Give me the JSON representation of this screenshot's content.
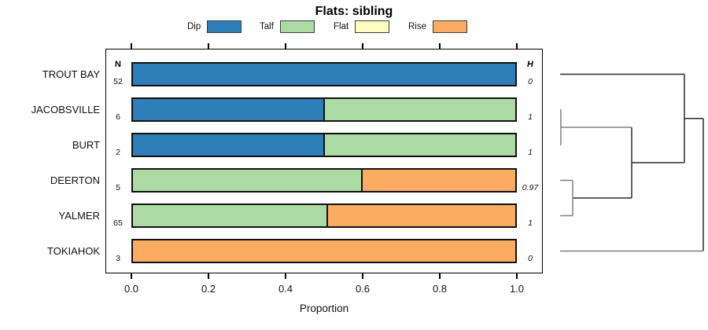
{
  "title": "Flats: sibling",
  "legend": {
    "items": [
      {
        "label": "Dip",
        "color": "#2E7FB9"
      },
      {
        "label": "Talf",
        "color": "#ABDBA2"
      },
      {
        "label": "Flat",
        "color": "#FDFDC2"
      },
      {
        "label": "Rise",
        "color": "#FBAC62"
      }
    ]
  },
  "table": {
    "n_header": "N",
    "h_header": "H"
  },
  "axis": {
    "label": "Proportion",
    "tick_labels": [
      "0.0",
      "0.2",
      "0.4",
      "0.6",
      "0.8",
      "1.0"
    ]
  },
  "chart_data": {
    "type": "bar",
    "stacked": true,
    "orientation": "horizontal",
    "title": "Flats: sibling",
    "xlabel": "Proportion",
    "xlim": [
      0,
      1
    ],
    "xticks": [
      0.0,
      0.2,
      0.4,
      0.6,
      0.8,
      1.0
    ],
    "grid": false,
    "legend_position": "top",
    "categories": [
      "TROUT BAY",
      "JACOBSVILLE",
      "BURT",
      "DEERTON",
      "YALMER",
      "TOKIAHOK"
    ],
    "n_values": [
      "52",
      "6",
      "2",
      "5",
      "65",
      "3"
    ],
    "h_values": [
      "0",
      "1",
      "1",
      "0.97",
      "1",
      "0"
    ],
    "series": [
      {
        "name": "Dip",
        "color": "#2E7FB9",
        "values": [
          1.0,
          0.5,
          0.5,
          0.0,
          0.0,
          0.0
        ]
      },
      {
        "name": "Talf",
        "color": "#ABDBA2",
        "values": [
          0.0,
          0.5,
          0.5,
          0.6,
          0.508,
          0.0
        ]
      },
      {
        "name": "Flat",
        "color": "#FDFDC2",
        "values": [
          0.0,
          0.0,
          0.0,
          0.0,
          0.0,
          0.0
        ]
      },
      {
        "name": "Rise",
        "color": "#FBAC62",
        "values": [
          0.0,
          0.0,
          0.0,
          0.4,
          0.492,
          1.0
        ]
      }
    ]
  },
  "dendrogram": {
    "leaves": [
      "TROUT BAY",
      "JACOBSVILLE",
      "BURT",
      "DEERTON",
      "YALMER",
      "TOKIAHOK"
    ],
    "structure": "((TROUT BAY,((JACOBSVILLE,BURT),(DEERTON,YALMER))),TOKIAHOK)",
    "segments": [
      [
        0,
        0,
        0.868,
        0,
        "dark"
      ],
      [
        0.088,
        3.5,
        0.5,
        3.5,
        "dark"
      ],
      [
        0.5,
        1.5,
        0.5,
        3.5,
        "dark"
      ],
      [
        0.5,
        2.5,
        0.868,
        2.5,
        "dark"
      ],
      [
        0.868,
        0,
        0.868,
        2.5,
        "dark"
      ],
      [
        0.868,
        1.25,
        1,
        1.25,
        "dark"
      ],
      [
        1,
        1.25,
        1,
        5,
        "dark"
      ],
      [
        0,
        1,
        0.005,
        1,
        "gray"
      ],
      [
        0,
        2,
        0.005,
        2,
        "gray"
      ],
      [
        0.005,
        1,
        0.005,
        2,
        "gray"
      ],
      [
        0.005,
        1.5,
        0.5,
        1.5,
        "gray"
      ],
      [
        0,
        3,
        0.088,
        3,
        "gray"
      ],
      [
        0,
        4,
        0.088,
        4,
        "gray"
      ],
      [
        0.088,
        3,
        0.088,
        4,
        "gray"
      ],
      [
        0,
        5,
        1,
        5,
        "gray"
      ]
    ]
  },
  "colors": {
    "bar_border": "#111111",
    "dendro_dark": "#2b2b2b",
    "dendro_gray": "#808080"
  }
}
